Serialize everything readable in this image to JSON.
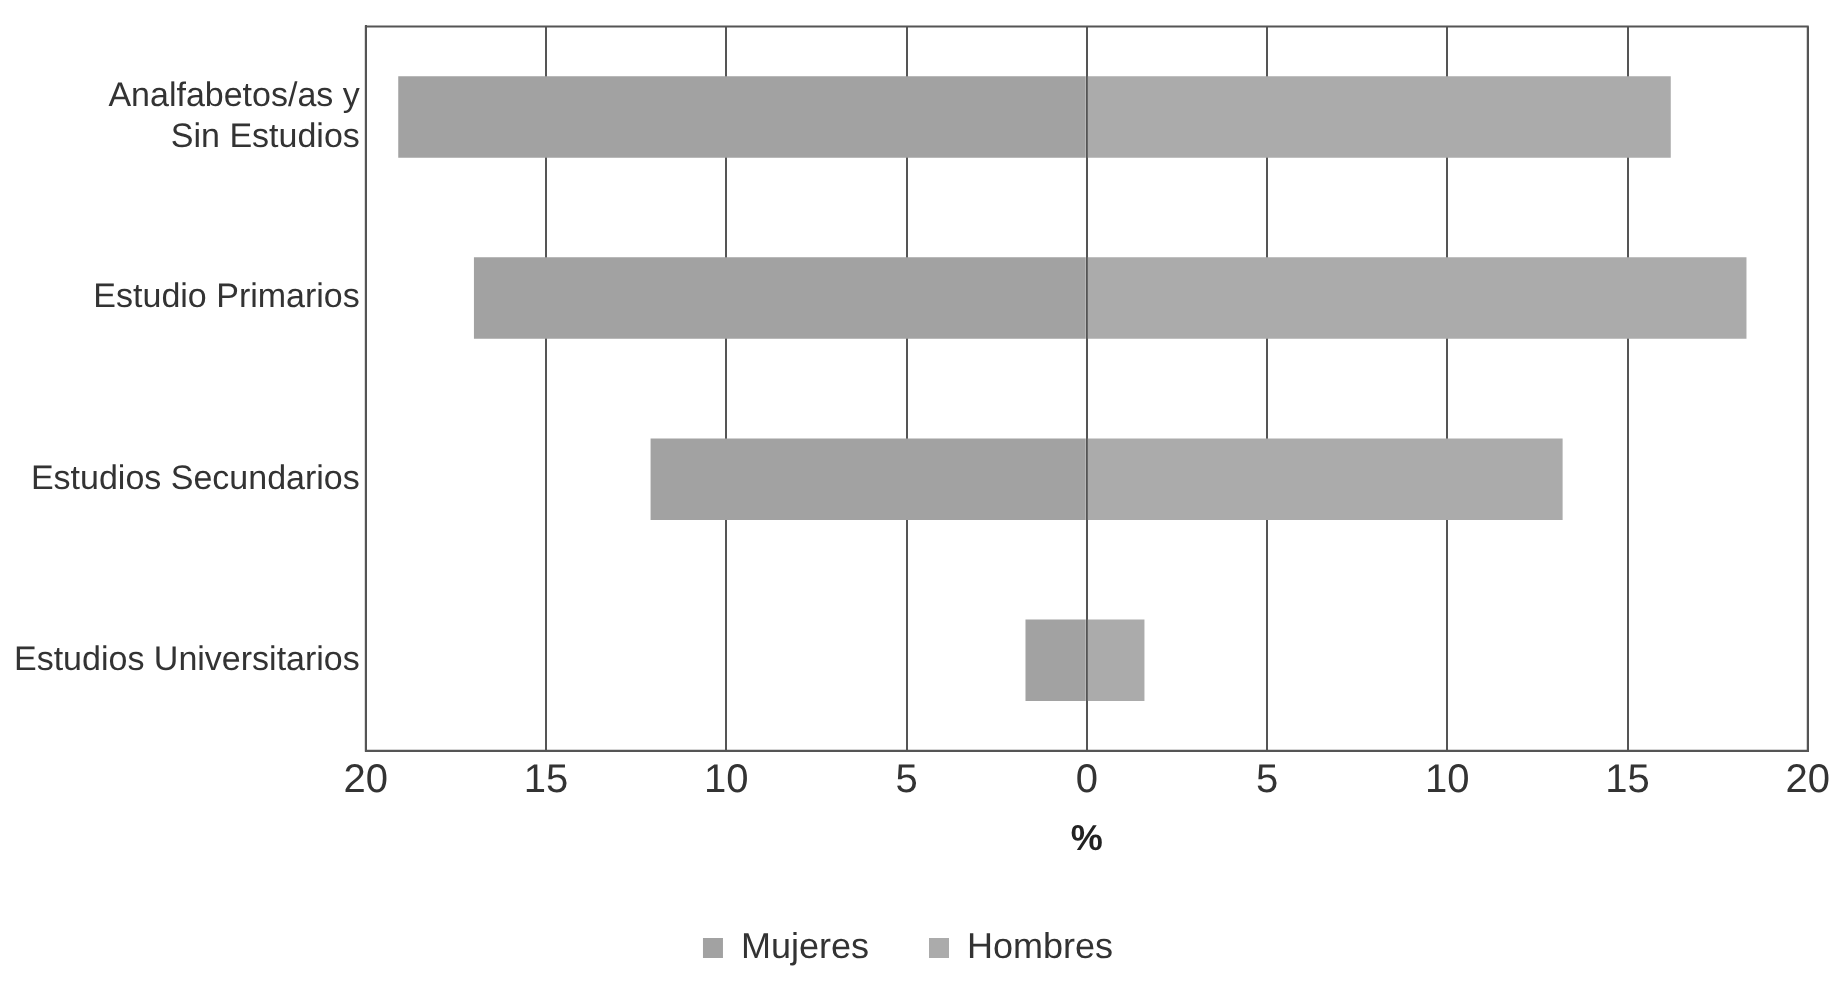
{
  "chart_data": {
    "type": "bar",
    "orientation": "horizontal",
    "stacked": true,
    "xlabel": "%",
    "categories": [
      "Analfabetos/as y\nSin Estudios",
      "Estudio Primarios",
      "Estudios Secundarios",
      "Estudios Universitarios"
    ],
    "series": [
      {
        "name": "Mujeres",
        "color": "#a2a2a2",
        "values": [
          -19.1,
          -17.0,
          -12.1,
          -1.7
        ]
      },
      {
        "name": "Hombres",
        "color": "#ababab",
        "values": [
          16.2,
          18.3,
          13.2,
          1.6
        ]
      }
    ],
    "xlim": [
      -20,
      20
    ],
    "xticks": [
      {
        "value": -20,
        "label": "20"
      },
      {
        "value": -15,
        "label": "15"
      },
      {
        "value": -10,
        "label": "10"
      },
      {
        "value": -5,
        "label": "5"
      },
      0,
      5,
      10,
      15,
      20
    ],
    "grid": "x",
    "legend": "bottom"
  }
}
